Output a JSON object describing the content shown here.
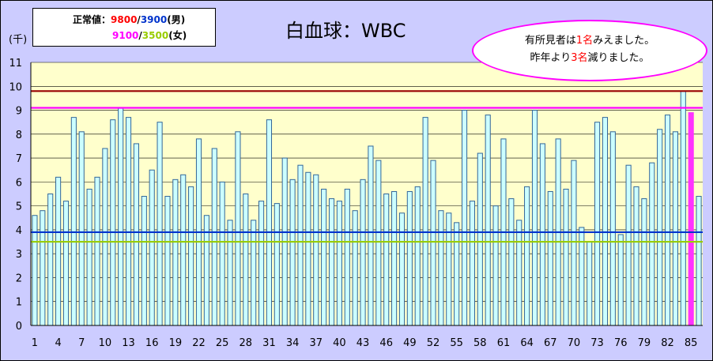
{
  "title": "白血球：WBC",
  "unit": "(千)",
  "legend": {
    "label_prefix": "正常値：",
    "male_upper": "9800",
    "slash": "/",
    "male_lower": "3900",
    "male_suffix": "(男)",
    "female_upper": "9100",
    "female_lower": "3500",
    "female_suffix": "(女)"
  },
  "callout": {
    "line1_pre": "有所見者は",
    "line1_num": "1名",
    "line1_post": "みえました。",
    "line2_pre": "昨年より",
    "line2_num": "3名",
    "line2_post": "減りました。"
  },
  "colors": {
    "plot_bg": "#ffffcc",
    "bar_fill": "#ccffff",
    "bar_stroke": "#336699",
    "highlight_bar": "#ff33ff",
    "line_10": "#990000",
    "line_9_1": "#ff00ff",
    "line_4": "#0033cc",
    "line_3_5": "#99cc00"
  },
  "chart_data": {
    "type": "bar",
    "title": "白血球：WBC",
    "ylabel": "(千)",
    "ylim": [
      0,
      11
    ],
    "yticks": [
      0,
      1,
      2,
      3,
      4,
      5,
      6,
      7,
      8,
      9,
      10,
      11
    ],
    "x_tick_labels": [
      "1",
      "4",
      "7",
      "10",
      "13",
      "16",
      "19",
      "22",
      "25",
      "28",
      "31",
      "34",
      "37",
      "40",
      "43",
      "46",
      "49",
      "52",
      "55",
      "58",
      "61",
      "64",
      "67",
      "70",
      "73",
      "76",
      "79",
      "82",
      "85"
    ],
    "x": [
      1,
      2,
      3,
      4,
      5,
      6,
      7,
      8,
      9,
      10,
      11,
      12,
      13,
      14,
      15,
      16,
      17,
      18,
      19,
      20,
      21,
      22,
      23,
      24,
      25,
      26,
      27,
      28,
      29,
      30,
      31,
      32,
      33,
      34,
      35,
      36,
      37,
      38,
      39,
      40,
      41,
      42,
      43,
      44,
      45,
      46,
      47,
      48,
      49,
      50,
      51,
      52,
      53,
      54,
      55,
      56,
      57,
      58,
      59,
      60,
      61,
      62,
      63,
      64,
      65,
      66,
      67,
      68,
      69,
      70,
      71,
      72,
      73,
      74,
      75,
      76,
      77,
      78,
      79,
      80,
      81,
      82,
      83,
      84,
      85,
      86
    ],
    "values": [
      4.6,
      4.8,
      5.5,
      6.2,
      5.2,
      8.7,
      8.1,
      5.7,
      6.2,
      7.4,
      8.6,
      9.1,
      8.7,
      7.6,
      5.4,
      6.5,
      8.5,
      5.4,
      6.1,
      6.3,
      5.8,
      7.8,
      4.6,
      7.4,
      6.0,
      4.4,
      8.1,
      5.5,
      4.4,
      5.2,
      8.6,
      5.1,
      7.0,
      6.1,
      6.7,
      6.4,
      6.3,
      5.7,
      5.3,
      5.2,
      5.7,
      4.8,
      6.1,
      7.5,
      6.9,
      5.5,
      5.6,
      4.7,
      5.6,
      5.8,
      8.7,
      6.9,
      4.8,
      4.7,
      4.3,
      9.0,
      5.2,
      7.2,
      8.8,
      5.0,
      7.8,
      5.3,
      4.4,
      5.8,
      9.0,
      7.6,
      5.6,
      7.8,
      5.7,
      6.9,
      4.1,
      3.5,
      8.5,
      8.7,
      8.1,
      3.8,
      6.7,
      5.8,
      5.3,
      6.8,
      8.2,
      8.8,
      8.1,
      9.8,
      8.9,
      5.4
    ],
    "highlight_index": 84,
    "reference_lines": [
      {
        "value": 9.8,
        "label": "9800",
        "color": "#990000"
      },
      {
        "value": 9.1,
        "label": "9100",
        "color": "#ff00ff"
      },
      {
        "value": 3.9,
        "label": "3900",
        "color": "#0033cc"
      },
      {
        "value": 3.5,
        "label": "3500",
        "color": "#99cc00"
      }
    ],
    "grid": true
  }
}
